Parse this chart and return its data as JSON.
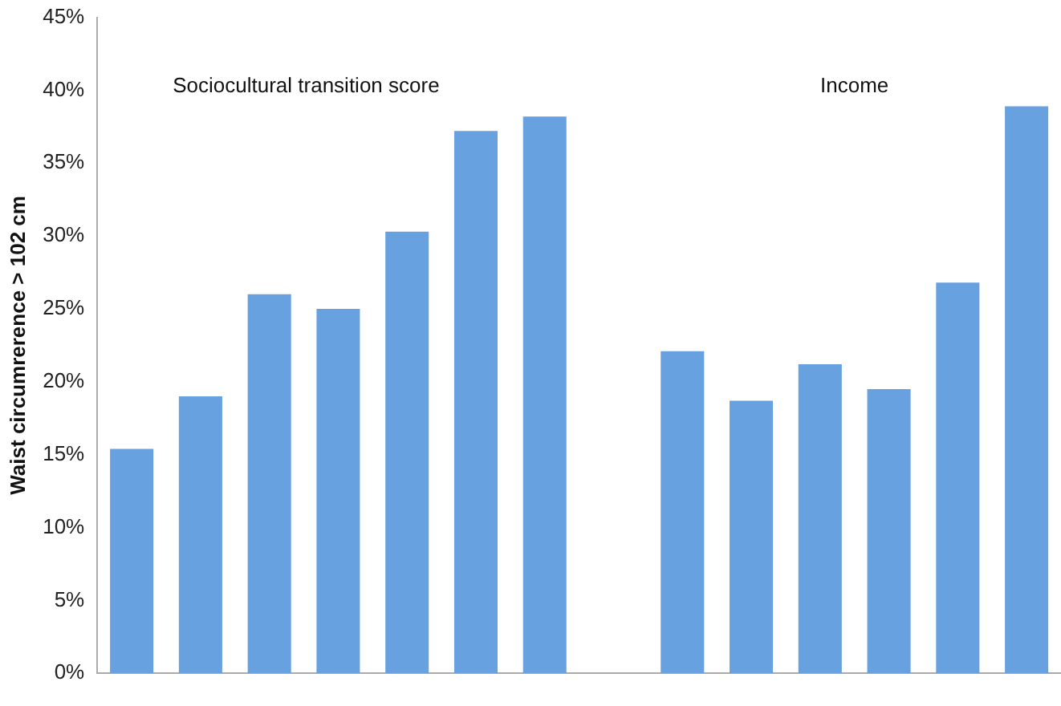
{
  "chart_data": {
    "type": "bar",
    "ylabel": "Waist circumrerence > 102 cm",
    "categories": [
      null,
      null,
      null,
      null,
      null,
      null,
      null,
      null,
      null,
      null,
      null,
      null,
      null,
      null
    ],
    "values": [
      15.4,
      19.0,
      26.0,
      25.0,
      30.3,
      37.2,
      38.2,
      null,
      22.1,
      18.7,
      21.2,
      19.5,
      26.8,
      38.9
    ],
    "color": "#67a1df",
    "ylim": [
      0,
      45
    ],
    "yticks": [
      {
        "value": 0,
        "label": "0%"
      },
      {
        "value": 5,
        "label": "5%"
      },
      {
        "value": 10,
        "label": "10%"
      },
      {
        "value": 15,
        "label": "15%"
      },
      {
        "value": 20,
        "label": "20%"
      },
      {
        "value": 25,
        "label": "25%"
      },
      {
        "value": 30,
        "label": "30%"
      },
      {
        "value": 35,
        "label": "35%"
      },
      {
        "value": 40,
        "label": "40%"
      },
      {
        "value": 45,
        "label": "45%"
      }
    ],
    "grid": false,
    "legend": false,
    "annotations": [
      "Sociocultural transition score",
      "Income"
    ]
  }
}
